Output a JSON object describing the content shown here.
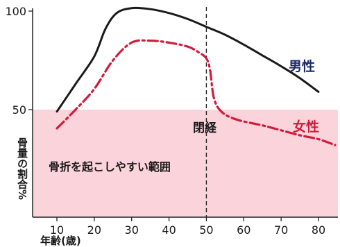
{
  "chart_data": {
    "type": "line",
    "xlabel": "年齢(歳)",
    "ylabel": "骨量の割合%",
    "xlim": [
      0,
      85
    ],
    "ylim": [
      0,
      104
    ],
    "x_ticks": [
      10,
      20,
      30,
      40,
      50,
      60,
      70,
      80
    ],
    "y_ticks": [
      50,
      100
    ],
    "grid": false,
    "series": [
      {
        "name": "男性",
        "color": "#1a1a1a",
        "style": "solid",
        "x": [
          10,
          15,
          20,
          23,
          26,
          30,
          35,
          40,
          45,
          50,
          55,
          60,
          65,
          70,
          75,
          80
        ],
        "y": [
          49,
          63,
          77,
          91,
          99,
          101.5,
          101,
          99,
          96,
          92,
          88,
          83,
          77.5,
          72,
          66,
          59
        ]
      },
      {
        "name": "女性",
        "color": "#d11b3a",
        "style": "dashdot",
        "x": [
          10,
          15,
          20,
          25,
          30,
          35,
          40,
          45,
          48,
          50,
          51,
          52,
          54,
          58,
          65,
          70,
          75,
          80,
          85
        ],
        "y": [
          40.5,
          50,
          60.5,
          75,
          84,
          85,
          84,
          82,
          79,
          76,
          70,
          56,
          49,
          45,
          42,
          39.5,
          37,
          35,
          32
        ]
      }
    ],
    "shaded_region": {
      "y_range": [
        0,
        50
      ],
      "label": "骨折を起こしやすい範囲",
      "color": "#fbd3da"
    },
    "reference_line": {
      "x": 50,
      "label": "閉経",
      "style": "dashed"
    }
  }
}
